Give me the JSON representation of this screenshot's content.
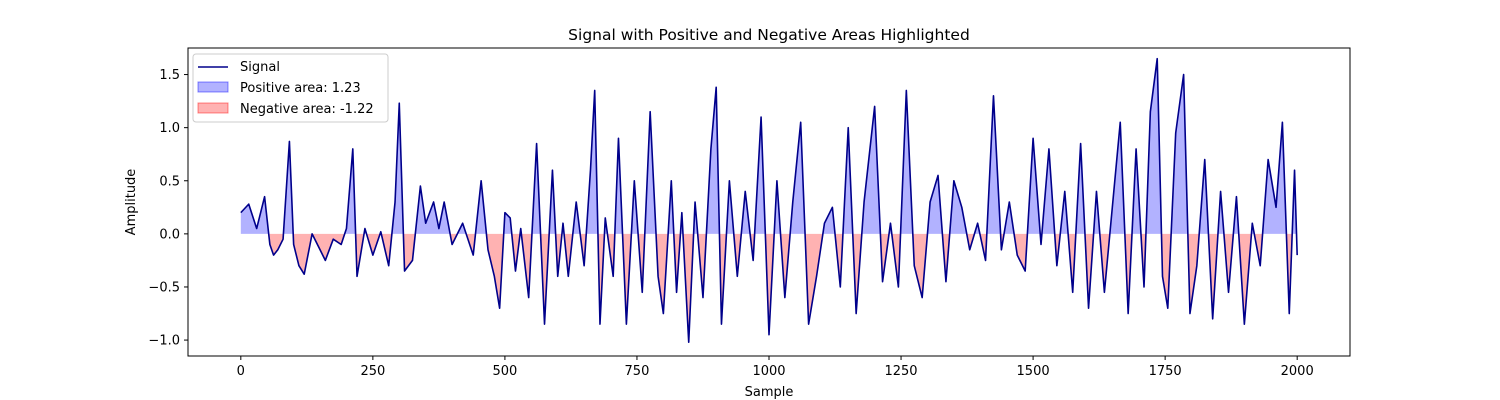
{
  "chart_data": {
    "type": "area",
    "title": "Signal with Positive and Negative Areas Highlighted",
    "xlabel": "Sample",
    "ylabel": "Amplitude",
    "xlim": [
      -100,
      2100
    ],
    "ylim": [
      -1.15,
      1.75
    ],
    "xticks": [
      0,
      250,
      500,
      750,
      1000,
      1250,
      1500,
      1750,
      2000
    ],
    "yticks": [
      -1.0,
      -0.5,
      0.0,
      0.5,
      1.0,
      1.5
    ],
    "ytick_labels": [
      "−1.0",
      "−0.5",
      "0.0",
      "0.5",
      "1.0",
      "1.5"
    ],
    "grid": false,
    "legend_placement": "upper-left",
    "colors": {
      "signal": "#00008b",
      "positive_fill": "#0000ff",
      "negative_fill": "#ff0000"
    },
    "series": [
      {
        "name": "Signal",
        "kind": "line"
      },
      {
        "name": "Positive area: 1.23",
        "kind": "fill-positive"
      },
      {
        "name": "Negative area: -1.22",
        "kind": "fill-negative"
      }
    ],
    "x": [
      0,
      15,
      30,
      45,
      55,
      62,
      70,
      80,
      92,
      100,
      110,
      120,
      135,
      150,
      160,
      175,
      190,
      200,
      212,
      220,
      235,
      250,
      265,
      280,
      292,
      300,
      310,
      325,
      340,
      350,
      365,
      375,
      385,
      400,
      420,
      440,
      455,
      468,
      480,
      490,
      500,
      510,
      520,
      530,
      545,
      560,
      575,
      590,
      600,
      610,
      620,
      635,
      650,
      662,
      670,
      680,
      690,
      705,
      715,
      730,
      745,
      760,
      775,
      790,
      800,
      815,
      825,
      835,
      848,
      860,
      875,
      890,
      900,
      910,
      925,
      940,
      955,
      970,
      985,
      1000,
      1015,
      1030,
      1045,
      1060,
      1075,
      1090,
      1105,
      1120,
      1135,
      1150,
      1165,
      1180,
      1200,
      1215,
      1230,
      1245,
      1260,
      1275,
      1290,
      1305,
      1320,
      1335,
      1350,
      1365,
      1380,
      1395,
      1410,
      1425,
      1440,
      1455,
      1470,
      1485,
      1500,
      1515,
      1530,
      1545,
      1560,
      1575,
      1590,
      1605,
      1620,
      1635,
      1650,
      1665,
      1680,
      1695,
      1710,
      1722,
      1735,
      1745,
      1755,
      1770,
      1785,
      1797,
      1810,
      1825,
      1840,
      1855,
      1870,
      1885,
      1900,
      1915,
      1930,
      1945,
      1960,
      1972,
      1985,
      1995,
      2000
    ],
    "y": [
      0.2,
      0.28,
      0.05,
      0.35,
      -0.1,
      -0.2,
      -0.15,
      -0.05,
      0.87,
      -0.1,
      -0.3,
      -0.38,
      0.0,
      -0.15,
      -0.25,
      -0.05,
      -0.1,
      0.05,
      0.8,
      -0.4,
      0.05,
      -0.2,
      0.02,
      -0.3,
      0.3,
      1.23,
      -0.35,
      -0.25,
      0.45,
      0.1,
      0.3,
      0.05,
      0.3,
      -0.1,
      0.1,
      -0.2,
      0.5,
      -0.15,
      -0.4,
      -0.7,
      0.2,
      0.15,
      -0.35,
      0.05,
      -0.6,
      0.85,
      -0.85,
      0.6,
      -0.4,
      0.1,
      -0.4,
      0.3,
      -0.3,
      0.6,
      1.35,
      -0.85,
      0.15,
      -0.4,
      0.9,
      -0.85,
      0.5,
      -0.55,
      1.15,
      -0.4,
      -0.75,
      0.5,
      -0.55,
      0.2,
      -1.02,
      0.3,
      -0.6,
      0.8,
      1.38,
      -0.85,
      0.5,
      -0.4,
      0.4,
      -0.25,
      1.1,
      -0.95,
      0.5,
      -0.6,
      0.3,
      1.05,
      -0.85,
      -0.4,
      0.1,
      0.25,
      -0.5,
      1.0,
      -0.75,
      0.3,
      1.2,
      -0.45,
      0.1,
      -0.5,
      1.35,
      -0.3,
      -0.6,
      0.3,
      0.55,
      -0.45,
      0.5,
      0.25,
      -0.15,
      0.1,
      -0.25,
      1.3,
      -0.15,
      0.3,
      -0.2,
      -0.35,
      0.9,
      -0.1,
      0.8,
      -0.3,
      0.4,
      -0.55,
      0.85,
      -0.7,
      0.4,
      -0.55,
      0.25,
      1.05,
      -0.75,
      0.8,
      -0.5,
      1.15,
      1.65,
      -0.4,
      -0.7,
      0.95,
      1.5,
      -0.75,
      -0.3,
      0.7,
      -0.8,
      0.4,
      -0.55,
      0.35,
      -0.85,
      0.1,
      -0.3,
      0.7,
      0.25,
      1.05,
      -0.75,
      0.6,
      -0.2
    ]
  },
  "legend": {
    "items": [
      {
        "label": "Signal",
        "swatch": "line"
      },
      {
        "label": "Positive area: 1.23",
        "swatch": "positive"
      },
      {
        "label": "Negative area: -1.22",
        "swatch": "negative"
      }
    ]
  }
}
